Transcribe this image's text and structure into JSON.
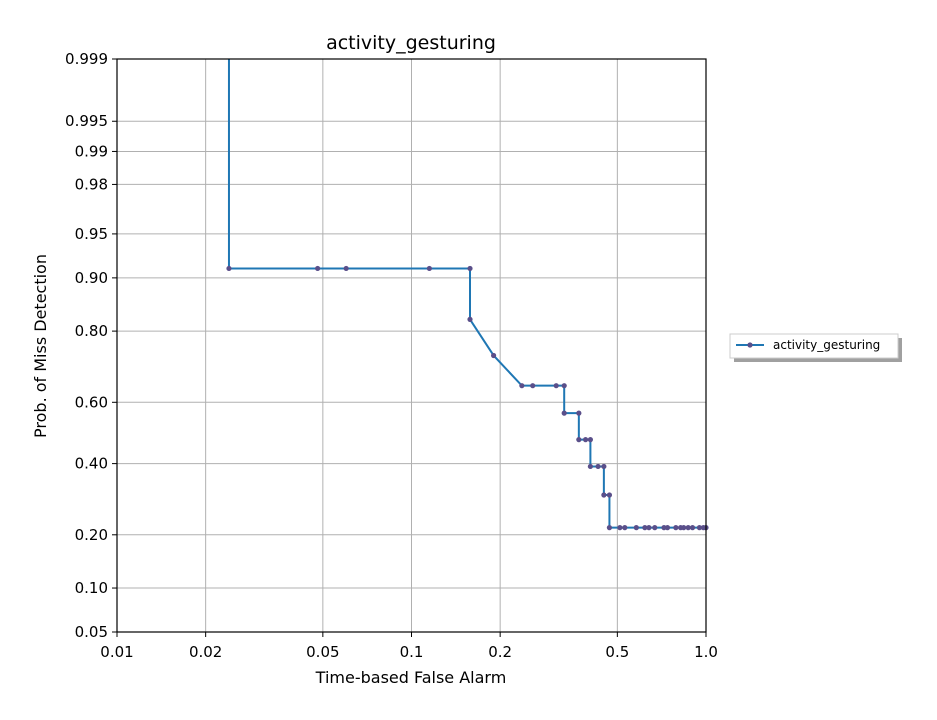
{
  "chart_data": {
    "type": "line",
    "title": "activity_gesturing",
    "xlabel": "Time-based False Alarm",
    "ylabel": "Prob. of Miss Detection",
    "x_scale": "log",
    "y_scale": "normal-deviate (probit)",
    "xlim": [
      0.01,
      1.0
    ],
    "ylim": [
      0.05,
      0.999
    ],
    "grid": true,
    "legend_position": "right, outside plot",
    "x_ticks": [
      {
        "value": 0.01,
        "label": "0.01"
      },
      {
        "value": 0.02,
        "label": "0.02"
      },
      {
        "value": 0.05,
        "label": "0.05"
      },
      {
        "value": 0.1,
        "label": "0.1"
      },
      {
        "value": 0.2,
        "label": "0.2"
      },
      {
        "value": 0.5,
        "label": "0.5"
      },
      {
        "value": 1.0,
        "label": "1.0"
      }
    ],
    "y_ticks": [
      {
        "value": 0.05,
        "label": "0.05"
      },
      {
        "value": 0.1,
        "label": "0.10"
      },
      {
        "value": 0.2,
        "label": "0.20"
      },
      {
        "value": 0.4,
        "label": "0.40"
      },
      {
        "value": 0.6,
        "label": "0.60"
      },
      {
        "value": 0.8,
        "label": "0.80"
      },
      {
        "value": 0.9,
        "label": "0.90"
      },
      {
        "value": 0.95,
        "label": "0.95"
      },
      {
        "value": 0.98,
        "label": "0.98"
      },
      {
        "value": 0.99,
        "label": "0.99"
      },
      {
        "value": 0.995,
        "label": "0.995"
      },
      {
        "value": 0.999,
        "label": "0.999"
      }
    ],
    "series": [
      {
        "name": "activity_gesturing",
        "color": "#1f77b4",
        "marker_color": "#5a4f8a",
        "points": [
          [
            0.024,
            0.999
          ],
          [
            0.024,
            0.913
          ],
          [
            0.048,
            0.913
          ],
          [
            0.06,
            0.913
          ],
          [
            0.115,
            0.913
          ],
          [
            0.158,
            0.913
          ],
          [
            0.158,
            0.826
          ],
          [
            0.19,
            0.739
          ],
          [
            0.237,
            0.652
          ],
          [
            0.258,
            0.652
          ],
          [
            0.31,
            0.652
          ],
          [
            0.33,
            0.652
          ],
          [
            0.33,
            0.565
          ],
          [
            0.37,
            0.565
          ],
          [
            0.37,
            0.478
          ],
          [
            0.39,
            0.478
          ],
          [
            0.405,
            0.478
          ],
          [
            0.405,
            0.391
          ],
          [
            0.43,
            0.391
          ],
          [
            0.45,
            0.391
          ],
          [
            0.45,
            0.304
          ],
          [
            0.47,
            0.304
          ],
          [
            0.47,
            0.217
          ],
          [
            0.51,
            0.217
          ],
          [
            0.53,
            0.217
          ],
          [
            0.58,
            0.217
          ],
          [
            0.62,
            0.217
          ],
          [
            0.64,
            0.217
          ],
          [
            0.67,
            0.217
          ],
          [
            0.72,
            0.217
          ],
          [
            0.74,
            0.217
          ],
          [
            0.79,
            0.217
          ],
          [
            0.82,
            0.217
          ],
          [
            0.84,
            0.217
          ],
          [
            0.87,
            0.217
          ],
          [
            0.9,
            0.217
          ],
          [
            0.95,
            0.217
          ],
          [
            0.98,
            0.217
          ],
          [
            1.0,
            0.217
          ]
        ]
      }
    ]
  }
}
